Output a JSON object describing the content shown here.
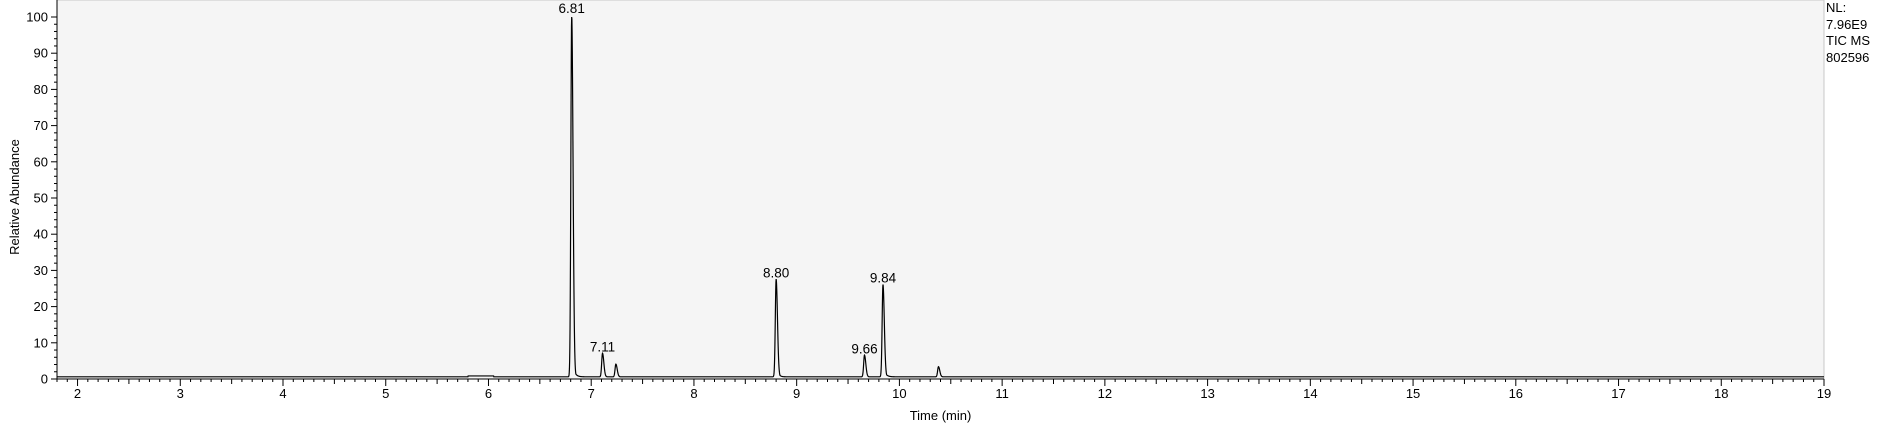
{
  "chart_data": {
    "type": "line",
    "xlabel": "Time (min)",
    "ylabel": "Relative Abundance",
    "xlim": [
      1.8,
      19.0
    ],
    "ylim": [
      0,
      100
    ],
    "xticks": [
      2,
      3,
      4,
      5,
      6,
      7,
      8,
      9,
      10,
      11,
      12,
      13,
      14,
      15,
      16,
      17,
      18,
      19
    ],
    "yticks": [
      0,
      10,
      20,
      30,
      40,
      50,
      60,
      70,
      80,
      90,
      100
    ],
    "grid": false,
    "baseline": 0.6,
    "peaks": [
      {
        "rt": 6.81,
        "height": 100.0,
        "label": "6.81"
      },
      {
        "rt": 7.11,
        "height": 6.5,
        "label": "7.11"
      },
      {
        "rt": 7.24,
        "height": 3.5,
        "label": ""
      },
      {
        "rt": 8.8,
        "height": 27.0,
        "label": "8.80"
      },
      {
        "rt": 9.66,
        "height": 6.0,
        "label": "9.66"
      },
      {
        "rt": 9.84,
        "height": 25.5,
        "label": "9.84"
      },
      {
        "rt": 10.38,
        "height": 2.8,
        "label": ""
      }
    ],
    "annotations": {
      "nl_label": "NL:",
      "nl_value": "7.96E9",
      "trace": "TIC  MS",
      "file": "802596"
    }
  },
  "colors": {
    "background": "#ffffff",
    "plot_background": "#f5f5f5",
    "trace": "#000000"
  }
}
